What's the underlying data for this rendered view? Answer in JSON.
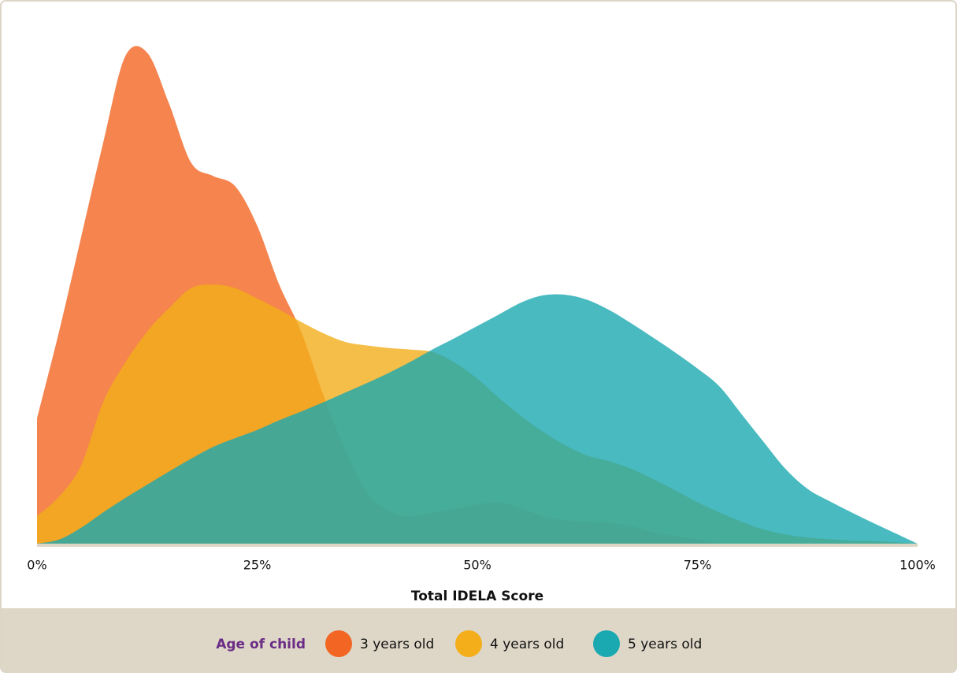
{
  "chart_data": {
    "type": "area",
    "x_label": "Total IDELA Score",
    "legend_title": "Age of child",
    "x": [
      0,
      2.5,
      5,
      7.5,
      10,
      12.5,
      15,
      17.5,
      20,
      22.5,
      25,
      27.5,
      30,
      32.5,
      35,
      37.5,
      40,
      42.5,
      45,
      47.5,
      50,
      52.5,
      55,
      57.5,
      60,
      62.5,
      65,
      67.5,
      70,
      72.5,
      75,
      77.5,
      80,
      82.5,
      85,
      87.5,
      90,
      92.5,
      95,
      97.5,
      100
    ],
    "series": [
      {
        "name": "3 years old",
        "color": "#f26522",
        "values": [
          24.8,
          41.7,
          60.1,
          78.5,
          95.4,
          96.2,
          86.2,
          74.7,
          72.1,
          70.1,
          62.4,
          50.9,
          41.7,
          29.4,
          18.7,
          10.3,
          6.7,
          5.7,
          6.4,
          7.2,
          8.0,
          8.4,
          7.2,
          5.7,
          4.9,
          4.6,
          4.4,
          3.7,
          2.6,
          1.8,
          1.1,
          0.3,
          0,
          0,
          0,
          0,
          0,
          0,
          0,
          0,
          0
        ]
      },
      {
        "name": "4 years old",
        "color": "#f3ae1a",
        "values": [
          5.7,
          9.5,
          15.6,
          27.9,
          35.6,
          41.7,
          46.3,
          50.2,
          50.9,
          50.2,
          48.2,
          46.0,
          43.6,
          41.4,
          39.7,
          39.0,
          38.5,
          38.2,
          37.7,
          35.6,
          32.5,
          28.7,
          25.2,
          22.1,
          19.5,
          17.5,
          16.4,
          14.9,
          12.9,
          10.7,
          8.4,
          6.4,
          4.6,
          3.1,
          2.1,
          1.5,
          1.2,
          0.9,
          0.8,
          0.6,
          0.3
        ]
      },
      {
        "name": "5 years old",
        "color": "#1aa9b0",
        "values": [
          0.3,
          1.1,
          3.4,
          6.4,
          9.2,
          11.8,
          14.4,
          16.9,
          19.2,
          20.9,
          22.5,
          24.4,
          26.1,
          27.9,
          29.8,
          31.7,
          33.7,
          35.9,
          38.3,
          40.5,
          42.8,
          45.1,
          47.4,
          48.8,
          48.9,
          47.9,
          45.9,
          43.3,
          40.5,
          37.6,
          34.5,
          31.0,
          25.6,
          20.2,
          14.9,
          11.0,
          8.6,
          6.4,
          4.3,
          2.3,
          0.3
        ]
      }
    ],
    "xlim": [
      0,
      100
    ],
    "xticks": [
      {
        "value": 0,
        "label": "0%"
      },
      {
        "value": 25,
        "label": "25%"
      },
      {
        "value": 50,
        "label": "50%"
      },
      {
        "value": 75,
        "label": "75%"
      },
      {
        "value": 100,
        "label": "100%"
      }
    ],
    "ylim": [
      0,
      100
    ]
  }
}
